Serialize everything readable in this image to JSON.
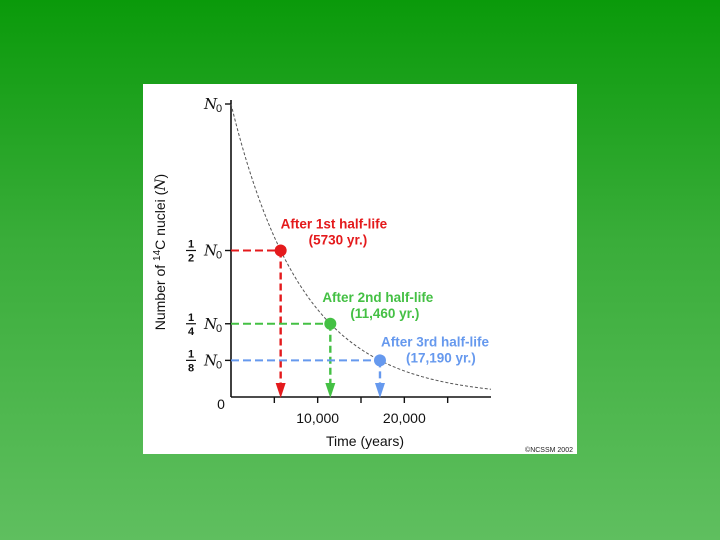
{
  "chart_data": {
    "type": "line",
    "xlabel": "Time (years)",
    "ylabel_pre": "Number of ",
    "ylabel_sup": "14",
    "ylabel_post": "C nuclei (",
    "ylabel_sym": "N",
    "ylabel_end": ")",
    "xlim": [
      0,
      30000
    ],
    "ylim": [
      0,
      1
    ],
    "x_ticks": [
      {
        "value": 0,
        "label": "0"
      },
      {
        "value": 10000,
        "label": "10,000"
      },
      {
        "value": 20000,
        "label": "20,000"
      }
    ],
    "y_ticks": [
      {
        "value": 1,
        "num": "",
        "den": "",
        "sym": "N",
        "sub": "0"
      },
      {
        "value": 0.5,
        "num": "1",
        "den": "2",
        "sym": "N",
        "sub": "0"
      },
      {
        "value": 0.25,
        "num": "1",
        "den": "4",
        "sym": "N",
        "sub": "0"
      },
      {
        "value": 0.125,
        "num": "1",
        "den": "8",
        "sym": "N",
        "sub": "0"
      }
    ],
    "half_life": 5730,
    "curve_style": "dashed",
    "markers": [
      {
        "x": 5730,
        "y": 0.5,
        "color": "#e41a1c",
        "line1": "After 1st half-life",
        "line2": "(5730 yr.)"
      },
      {
        "x": 11460,
        "y": 0.25,
        "color": "#44c044",
        "line1": "After 2nd half-life",
        "line2": "(11,460 yr.)"
      },
      {
        "x": 17190,
        "y": 0.125,
        "color": "#6699ee",
        "line1": "After 3rd half-life",
        "line2": "(17,190 yr.)"
      }
    ],
    "copyright": "©NCSSM 2002"
  },
  "colors": {
    "slide_top": "#0a9a0a",
    "slide_bottom": "#5fbf5f",
    "figure_bg": "#ffffff"
  }
}
